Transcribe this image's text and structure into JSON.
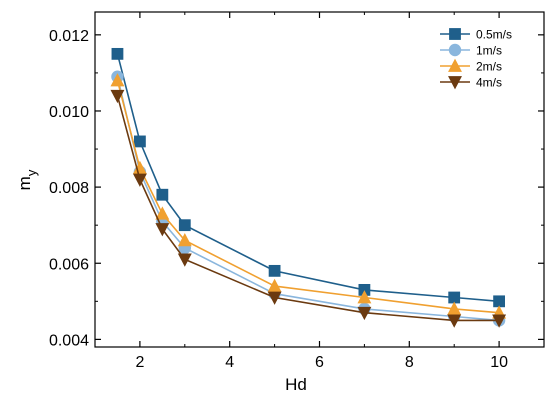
{
  "chart_data": {
    "type": "line",
    "title": "",
    "xlabel": "Hd",
    "ylabel_main": "m",
    "ylabel_sub": "y",
    "xlim": [
      1.0,
      11.0
    ],
    "ylim": [
      0.0038,
      0.0126
    ],
    "xticks": [
      2,
      4,
      6,
      8,
      10
    ],
    "yticks": [
      0.004,
      0.006,
      0.008,
      0.01,
      0.012
    ],
    "ytick_labels": [
      "0.004",
      "0.006",
      "0.008",
      "0.010",
      "0.012"
    ],
    "grid": false,
    "legend_position": "top-right",
    "x": [
      1.5,
      2,
      2.5,
      3,
      5,
      7,
      9,
      10
    ],
    "series": [
      {
        "name": "0.5m/s",
        "color": "#1f5f8b",
        "marker": "square",
        "values": [
          0.0115,
          0.0092,
          0.0078,
          0.007,
          0.0058,
          0.0053,
          0.0051,
          0.005
        ]
      },
      {
        "name": "1m/s",
        "color": "#8ab6dd",
        "marker": "circle",
        "values": [
          0.0109,
          0.0084,
          0.0071,
          0.0064,
          0.0052,
          0.0048,
          0.0046,
          0.0045
        ]
      },
      {
        "name": "2m/s",
        "color": "#f0a030",
        "marker": "triangle-up",
        "values": [
          0.0108,
          0.0085,
          0.0073,
          0.0066,
          0.0054,
          0.0051,
          0.0048,
          0.0047
        ]
      },
      {
        "name": "4m/s",
        "color": "#6b3a10",
        "marker": "triangle-down",
        "values": [
          0.0104,
          0.0082,
          0.0069,
          0.0061,
          0.0051,
          0.0047,
          0.0045,
          0.0045
        ]
      }
    ]
  }
}
